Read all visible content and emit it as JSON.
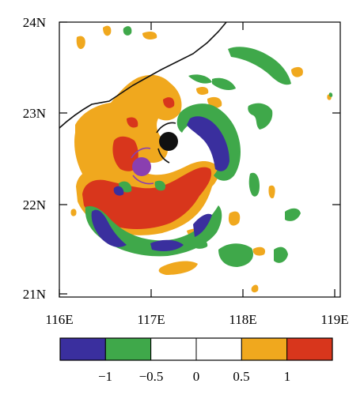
{
  "map": {
    "x_ticks": [
      "116E",
      "117E",
      "118E",
      "119E"
    ],
    "y_ticks": [
      "24N",
      "23N",
      "22N",
      "21N"
    ],
    "lon_range": [
      116,
      119
    ],
    "lat_range": [
      21,
      24
    ]
  },
  "colorbar": {
    "colors": [
      "#3a2f9e",
      "#3fa84a",
      "#ffffff",
      "#ffffff",
      "#f0a81e",
      "#d8361c"
    ],
    "labels": [
      "−1",
      "−0.5",
      "0",
      "0.5",
      "1"
    ]
  },
  "markers": [
    {
      "name": "black-circle-marker",
      "color": "#111111"
    },
    {
      "name": "purple-circle-marker",
      "color": "#8a3fb0"
    }
  ],
  "fill_colors": {
    "strong_negative": "#3a2f9e",
    "negative": "#3fa84a",
    "positive": "#f0a81e",
    "strong_positive": "#d8361c",
    "coastline": "#111111"
  }
}
